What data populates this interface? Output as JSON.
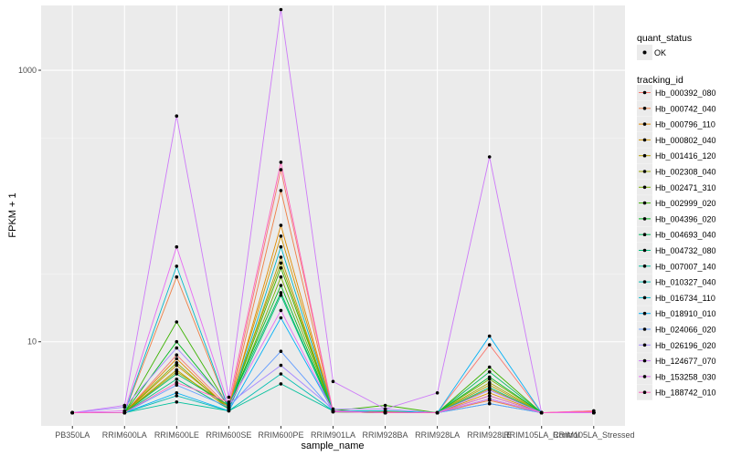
{
  "chart_data": {
    "type": "line",
    "xlabel": "sample_name",
    "ylabel": "FPKM + 1",
    "y_scale": "log10",
    "ylim": [
      2.4,
      3000
    ],
    "y_ticks": [
      10,
      1000
    ],
    "grid": true,
    "legend_placement": "right",
    "categories": [
      "PB350LA",
      "RRIM600LA",
      "RRIM600LE",
      "RRIM600SE",
      "RRIM600PE",
      "RRIM901LA",
      "RRIM928BA",
      "RRIM928LA",
      "RRIM928LE",
      "RRIM105LA_Control",
      "RRIM105LA_Stressed"
    ],
    "shape_legend": {
      "title": "quant_status",
      "entries": [
        "OK"
      ]
    },
    "color_legend_title": "tracking_id",
    "series": [
      {
        "name": "Hb_000392_080",
        "color": "#F8766D",
        "values": [
          3,
          3,
          8,
          3.3,
          185,
          3.05,
          3,
          3,
          9.5,
          3,
          3.05
        ]
      },
      {
        "name": "Hb_000742_040",
        "color": "#EF7F44",
        "values": [
          3,
          3,
          30,
          3.2,
          130,
          3.05,
          3.05,
          3,
          3.7,
          3,
          3.1
        ]
      },
      {
        "name": "Hb_000796_110",
        "color": "#E18A00",
        "values": [
          3,
          3,
          7.5,
          3.2,
          72,
          3.1,
          3,
          3,
          4.2,
          3,
          3
        ]
      },
      {
        "name": "Hb_000802_040",
        "color": "#CF9400",
        "values": [
          3,
          3,
          6.7,
          3.3,
          60,
          3.1,
          3,
          3,
          4.5,
          3,
          3
        ]
      },
      {
        "name": "Hb_001416_120",
        "color": "#B79F00",
        "values": [
          3,
          3,
          6.2,
          3.2,
          42,
          3.05,
          3,
          3,
          4.8,
          3,
          3
        ]
      },
      {
        "name": "Hb_002308_040",
        "color": "#9CA700",
        "values": [
          3,
          3,
          6,
          3.4,
          38,
          3.1,
          3,
          3,
          5,
          3,
          3
        ]
      },
      {
        "name": "Hb_002471_310",
        "color": "#7AAE00",
        "values": [
          3,
          3,
          7,
          3.2,
          30,
          3.1,
          3,
          3,
          5.3,
          3,
          3
        ]
      },
      {
        "name": "Hb_002999_020",
        "color": "#3BB300",
        "values": [
          3,
          3,
          14,
          3.3,
          35,
          3.1,
          3.4,
          3,
          6.5,
          3,
          3
        ]
      },
      {
        "name": "Hb_004396_020",
        "color": "#00B81F",
        "values": [
          3,
          3,
          10,
          3.4,
          26,
          3.05,
          3,
          3,
          5.5,
          3,
          3
        ]
      },
      {
        "name": "Hb_004693_040",
        "color": "#00BA5A",
        "values": [
          3,
          3,
          5.8,
          3.4,
          23,
          3.05,
          3,
          3,
          6,
          3,
          3
        ]
      },
      {
        "name": "Hb_004732_080",
        "color": "#00BE7D",
        "values": [
          3,
          3,
          5.3,
          3.2,
          22,
          3.05,
          3,
          3,
          4.6,
          3,
          3
        ]
      },
      {
        "name": "Hb_007007_140",
        "color": "#00C09B",
        "values": [
          3,
          3,
          3.6,
          3.1,
          4.9,
          3.1,
          3,
          3,
          4,
          3,
          3
        ]
      },
      {
        "name": "Hb_010327_040",
        "color": "#00BDB2",
        "values": [
          3,
          3,
          4,
          3.1,
          5.8,
          3.1,
          3,
          3,
          3.5,
          3,
          3
        ]
      },
      {
        "name": "Hb_016734_110",
        "color": "#00B8C9",
        "values": [
          3,
          3,
          36,
          3.2,
          50,
          3.1,
          3.1,
          3,
          3.8,
          3,
          3
        ]
      },
      {
        "name": "Hb_018910_010",
        "color": "#00B0F6",
        "values": [
          3,
          3,
          4.2,
          3.1,
          15,
          3.1,
          3,
          3,
          11,
          3,
          3
        ]
      },
      {
        "name": "Hb_024066_020",
        "color": "#619CFF",
        "values": [
          3,
          3,
          4.8,
          3.3,
          8.5,
          3.1,
          3,
          3,
          3.5,
          3,
          3
        ]
      },
      {
        "name": "Hb_026196_020",
        "color": "#A58AFF",
        "values": [
          3,
          3.3,
          9,
          3.5,
          6.7,
          3.2,
          3.2,
          3,
          4.4,
          3,
          3
        ]
      },
      {
        "name": "Hb_124677_070",
        "color": "#CD79F9",
        "values": [
          3,
          3.4,
          460,
          3.9,
          2800,
          5.1,
          3.2,
          4.2,
          230,
          3,
          3
        ]
      },
      {
        "name": "Hb_153258_030",
        "color": "#E76BF3",
        "values": [
          3,
          3.1,
          50,
          3.4,
          17,
          3.1,
          3,
          3,
          3.8,
          3,
          3
        ]
      },
      {
        "name": "Hb_188742_010",
        "color": "#FF62BC",
        "values": [
          3,
          3,
          5,
          3.6,
          210,
          3.05,
          3,
          3,
          4,
          3,
          3.1
        ]
      }
    ]
  }
}
